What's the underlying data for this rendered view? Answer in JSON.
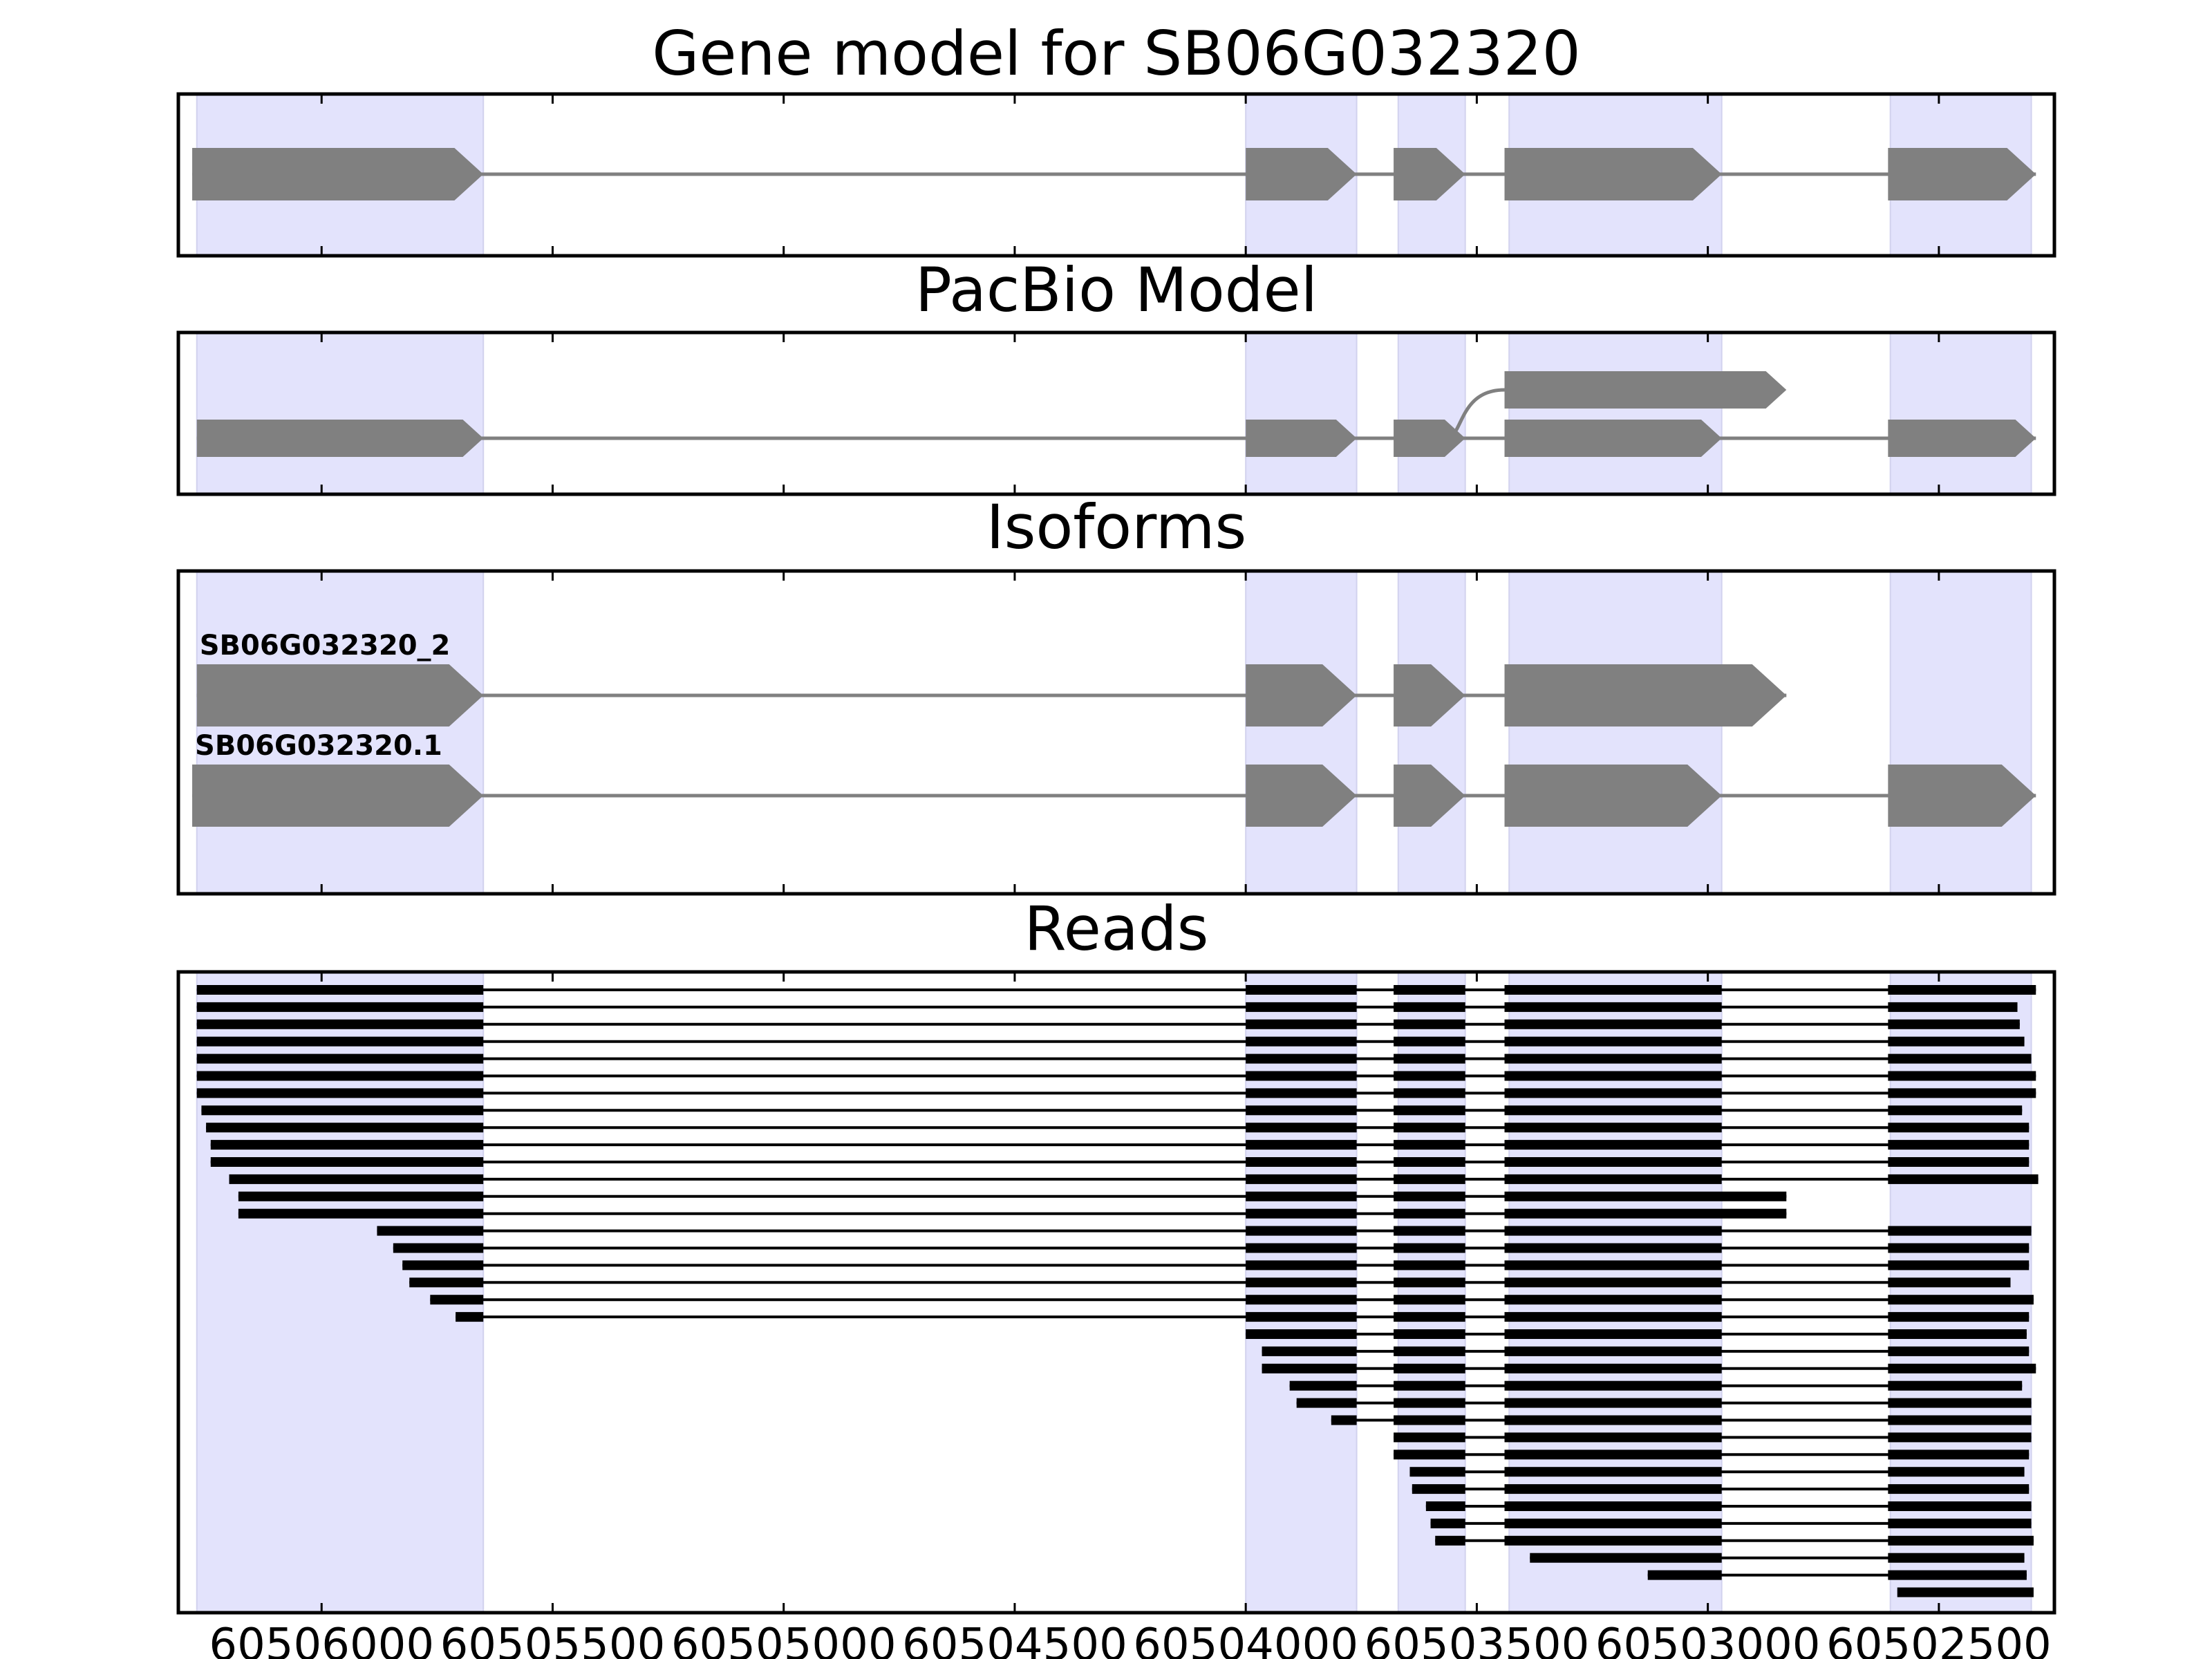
{
  "chart_data": {
    "type": "gene-model-track",
    "x_axis": {
      "range": [
        60506310,
        60502250
      ],
      "reversed": true,
      "ticks": [
        60506000,
        60505500,
        60505000,
        60504500,
        60504000,
        60503500,
        60503000,
        60502500
      ],
      "tick_labels": [
        "60506000",
        "60505500",
        "60505000",
        "60504500",
        "60504000",
        "60503500",
        "60503000",
        "60502500"
      ]
    },
    "highlight_color": "#e3e3fc",
    "feature_color": "#808080",
    "read_color": "#000000",
    "shaded_regions": [
      [
        60506270,
        60505650
      ],
      [
        60504000,
        60503760
      ],
      [
        60503670,
        60503525
      ],
      [
        60503430,
        60502970
      ],
      [
        60502605,
        60502300
      ]
    ],
    "panels": [
      {
        "title": "Gene model for SB06G032320",
        "strand": "-",
        "models": [
          {
            "label": "",
            "exons": [
              [
                60506280,
                60505650
              ],
              [
                60504000,
                60503760
              ],
              [
                60503680,
                60503525
              ],
              [
                60503440,
                60502970
              ],
              [
                60502610,
                60502290
              ]
            ]
          }
        ]
      },
      {
        "title": "PacBio Model",
        "strand": "-",
        "models": [
          {
            "label": "",
            "exons": [
              [
                60506270,
                60505650
              ],
              [
                60504000,
                60503760
              ],
              [
                60503680,
                60503525
              ],
              [
                60503440,
                60502970
              ],
              [
                60502610,
                60502290
              ]
            ]
          },
          {
            "label": "",
            "exons": [
              [
                60503440,
                60502830
              ]
            ],
            "branch_from": 60503560
          }
        ]
      },
      {
        "title": "Isoforms",
        "strand": "-",
        "models": [
          {
            "label": "SB06G032320_2",
            "exons": [
              [
                60506270,
                60505650
              ],
              [
                60504000,
                60503760
              ],
              [
                60503680,
                60503525
              ],
              [
                60503440,
                60502830
              ]
            ]
          },
          {
            "label": "SB06G032320.1",
            "exons": [
              [
                60506280,
                60505650
              ],
              [
                60504000,
                60503760
              ],
              [
                60503680,
                60503525
              ],
              [
                60503440,
                60502970
              ],
              [
                60502610,
                60502290
              ]
            ]
          }
        ]
      },
      {
        "title": "Reads",
        "reads": [
          [
            [
              60506270,
              60505650
            ],
            [
              60504000,
              60503760
            ],
            [
              60503680,
              60503525
            ],
            [
              60503440,
              60502970
            ],
            [
              60502610,
              60502290
            ]
          ],
          [
            [
              60506270,
              60505650
            ],
            [
              60504000,
              60503760
            ],
            [
              60503680,
              60503525
            ],
            [
              60503440,
              60502970
            ],
            [
              60502610,
              60502330
            ]
          ],
          [
            [
              60506270,
              60505650
            ],
            [
              60504000,
              60503760
            ],
            [
              60503680,
              60503525
            ],
            [
              60503440,
              60502970
            ],
            [
              60502610,
              60502325
            ]
          ],
          [
            [
              60506270,
              60505650
            ],
            [
              60504000,
              60503760
            ],
            [
              60503680,
              60503525
            ],
            [
              60503440,
              60502970
            ],
            [
              60502610,
              60502315
            ]
          ],
          [
            [
              60506270,
              60505650
            ],
            [
              60504000,
              60503760
            ],
            [
              60503680,
              60503525
            ],
            [
              60503440,
              60502970
            ],
            [
              60502610,
              60502300
            ]
          ],
          [
            [
              60506270,
              60505650
            ],
            [
              60504000,
              60503760
            ],
            [
              60503680,
              60503525
            ],
            [
              60503440,
              60502970
            ],
            [
              60502610,
              60502290
            ]
          ],
          [
            [
              60506270,
              60505650
            ],
            [
              60504000,
              60503760
            ],
            [
              60503680,
              60503525
            ],
            [
              60503440,
              60502970
            ],
            [
              60502610,
              60502290
            ]
          ],
          [
            [
              60506260,
              60505650
            ],
            [
              60504000,
              60503760
            ],
            [
              60503680,
              60503525
            ],
            [
              60503440,
              60502970
            ],
            [
              60502610,
              60502320
            ]
          ],
          [
            [
              60506250,
              60505650
            ],
            [
              60504000,
              60503760
            ],
            [
              60503680,
              60503525
            ],
            [
              60503440,
              60502970
            ],
            [
              60502610,
              60502305
            ]
          ],
          [
            [
              60506240,
              60505650
            ],
            [
              60504000,
              60503760
            ],
            [
              60503680,
              60503525
            ],
            [
              60503440,
              60502970
            ],
            [
              60502610,
              60502305
            ]
          ],
          [
            [
              60506240,
              60505650
            ],
            [
              60504000,
              60503760
            ],
            [
              60503680,
              60503525
            ],
            [
              60503440,
              60502970
            ],
            [
              60502610,
              60502305
            ]
          ],
          [
            [
              60506200,
              60505650
            ],
            [
              60504000,
              60503760
            ],
            [
              60503680,
              60503525
            ],
            [
              60503440,
              60502970
            ],
            [
              60502610,
              60502285
            ]
          ],
          [
            [
              60506180,
              60505650
            ],
            [
              60504000,
              60503760
            ],
            [
              60503680,
              60503525
            ],
            [
              60503440,
              60502830
            ]
          ],
          [
            [
              60506180,
              60505650
            ],
            [
              60504000,
              60503760
            ],
            [
              60503680,
              60503525
            ],
            [
              60503440,
              60502830
            ]
          ],
          [
            [
              60505880,
              60505650
            ],
            [
              60504000,
              60503760
            ],
            [
              60503680,
              60503525
            ],
            [
              60503440,
              60502970
            ],
            [
              60502610,
              60502300
            ]
          ],
          [
            [
              60505845,
              60505650
            ],
            [
              60504000,
              60503760
            ],
            [
              60503680,
              60503525
            ],
            [
              60503440,
              60502970
            ],
            [
              60502610,
              60502305
            ]
          ],
          [
            [
              60505825,
              60505650
            ],
            [
              60504000,
              60503760
            ],
            [
              60503680,
              60503525
            ],
            [
              60503440,
              60502970
            ],
            [
              60502610,
              60502305
            ]
          ],
          [
            [
              60505810,
              60505650
            ],
            [
              60504000,
              60503760
            ],
            [
              60503680,
              60503525
            ],
            [
              60503440,
              60502970
            ],
            [
              60502610,
              60502345
            ]
          ],
          [
            [
              60505765,
              60505650
            ],
            [
              60504000,
              60503760
            ],
            [
              60503680,
              60503525
            ],
            [
              60503440,
              60502970
            ],
            [
              60502610,
              60502295
            ]
          ],
          [
            [
              60505710,
              60505650
            ],
            [
              60504000,
              60503760
            ],
            [
              60503680,
              60503525
            ],
            [
              60503440,
              60502970
            ],
            [
              60502610,
              60502305
            ]
          ],
          [
            [
              60504000,
              60503760
            ],
            [
              60503680,
              60503525
            ],
            [
              60503440,
              60502970
            ],
            [
              60502610,
              60502310
            ]
          ],
          [
            [
              60503965,
              60503760
            ],
            [
              60503680,
              60503525
            ],
            [
              60503440,
              60502970
            ],
            [
              60502610,
              60502305
            ]
          ],
          [
            [
              60503965,
              60503760
            ],
            [
              60503680,
              60503525
            ],
            [
              60503440,
              60502970
            ],
            [
              60502610,
              60502290
            ]
          ],
          [
            [
              60503905,
              60503760
            ],
            [
              60503680,
              60503525
            ],
            [
              60503440,
              60502970
            ],
            [
              60502610,
              60502320
            ]
          ],
          [
            [
              60503890,
              60503760
            ],
            [
              60503680,
              60503525
            ],
            [
              60503440,
              60502970
            ],
            [
              60502610,
              60502300
            ]
          ],
          [
            [
              60503815,
              60503760
            ],
            [
              60503680,
              60503525
            ],
            [
              60503440,
              60502970
            ],
            [
              60502610,
              60502300
            ]
          ],
          [
            [
              60503680,
              60503525
            ],
            [
              60503440,
              60502970
            ],
            [
              60502610,
              60502300
            ]
          ],
          [
            [
              60503680,
              60503525
            ],
            [
              60503440,
              60502970
            ],
            [
              60502610,
              60502305
            ]
          ],
          [
            [
              60503645,
              60503525
            ],
            [
              60503440,
              60502970
            ],
            [
              60502610,
              60502315
            ]
          ],
          [
            [
              60503640,
              60503525
            ],
            [
              60503440,
              60502970
            ],
            [
              60502610,
              60502305
            ]
          ],
          [
            [
              60503610,
              60503525
            ],
            [
              60503440,
              60502970
            ],
            [
              60502610,
              60502300
            ]
          ],
          [
            [
              60503600,
              60503525
            ],
            [
              60503440,
              60502970
            ],
            [
              60502610,
              60502300
            ]
          ],
          [
            [
              60503590,
              60503525
            ],
            [
              60503440,
              60502970
            ],
            [
              60502610,
              60502295
            ]
          ],
          [
            [
              60503385,
              60502970
            ],
            [
              60502610,
              60502315
            ]
          ],
          [
            [
              60503130,
              60502970
            ],
            [
              60502610,
              60502310
            ]
          ],
          [
            [
              60502590,
              60502295
            ]
          ]
        ]
      }
    ]
  }
}
